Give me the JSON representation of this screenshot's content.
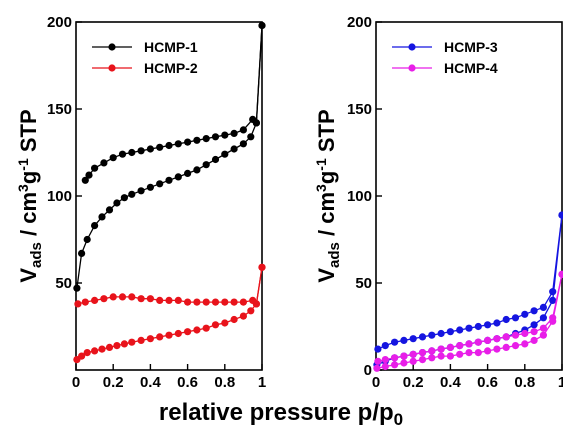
{
  "chart_data": [
    {
      "type": "line",
      "panel": "left",
      "ylabel": {
        "main": "V",
        "sub": "ads",
        "mid": " / cm",
        "sup1": "3",
        "mid2": "g",
        "sup2": "-1",
        "tail": " STP"
      },
      "xlim": [
        0,
        1
      ],
      "ylim": [
        0,
        200
      ],
      "xticks": [
        0,
        0.2,
        0.4,
        0.6,
        0.8,
        1
      ],
      "xtick_labels": [
        "0",
        "0.2",
        "0.4",
        "0.6",
        "0.8",
        "1"
      ],
      "yticks": [
        50,
        100,
        150,
        200
      ],
      "ytick_labels": [
        "50",
        "100",
        "150",
        "200"
      ],
      "legend_position": "top-left",
      "series": [
        {
          "name": "HCMP-1",
          "color": "#000000",
          "adsorption": [
            [
              0.005,
              47
            ],
            [
              0.03,
              67
            ],
            [
              0.06,
              75
            ],
            [
              0.1,
              83
            ],
            [
              0.14,
              88
            ],
            [
              0.18,
              92
            ],
            [
              0.22,
              96
            ],
            [
              0.26,
              99
            ],
            [
              0.3,
              101
            ],
            [
              0.35,
              103
            ],
            [
              0.4,
              105
            ],
            [
              0.45,
              107
            ],
            [
              0.5,
              109
            ],
            [
              0.55,
              111
            ],
            [
              0.6,
              113
            ],
            [
              0.65,
              115
            ],
            [
              0.7,
              118
            ],
            [
              0.75,
              121
            ],
            [
              0.8,
              124
            ],
            [
              0.85,
              127
            ],
            [
              0.9,
              130
            ],
            [
              0.94,
              134
            ],
            [
              0.97,
              142
            ],
            [
              1.0,
              198
            ]
          ],
          "desorption": [
            [
              1.0,
              198
            ],
            [
              0.97,
              142
            ],
            [
              0.95,
              144
            ],
            [
              0.9,
              138
            ],
            [
              0.85,
              136
            ],
            [
              0.8,
              135
            ],
            [
              0.75,
              134
            ],
            [
              0.7,
              133
            ],
            [
              0.65,
              132
            ],
            [
              0.6,
              131
            ],
            [
              0.55,
              130
            ],
            [
              0.5,
              129
            ],
            [
              0.45,
              128
            ],
            [
              0.4,
              127
            ],
            [
              0.35,
              126
            ],
            [
              0.3,
              125
            ],
            [
              0.25,
              124
            ],
            [
              0.2,
              122
            ],
            [
              0.15,
              119
            ],
            [
              0.1,
              116
            ],
            [
              0.07,
              112
            ],
            [
              0.05,
              109
            ]
          ]
        },
        {
          "name": "HCMP-2",
          "color": "#e8131b",
          "adsorption": [
            [
              0.005,
              6
            ],
            [
              0.03,
              8
            ],
            [
              0.06,
              10
            ],
            [
              0.1,
              11
            ],
            [
              0.14,
              12
            ],
            [
              0.18,
              13
            ],
            [
              0.22,
              14
            ],
            [
              0.26,
              15
            ],
            [
              0.3,
              16
            ],
            [
              0.35,
              17
            ],
            [
              0.4,
              18
            ],
            [
              0.45,
              19
            ],
            [
              0.5,
              20
            ],
            [
              0.55,
              21
            ],
            [
              0.6,
              22
            ],
            [
              0.65,
              23
            ],
            [
              0.7,
              24
            ],
            [
              0.75,
              26
            ],
            [
              0.8,
              27
            ],
            [
              0.85,
              29
            ],
            [
              0.9,
              31
            ],
            [
              0.94,
              34
            ],
            [
              0.97,
              38
            ],
            [
              1.0,
              59
            ]
          ],
          "desorption": [
            [
              1.0,
              59
            ],
            [
              0.97,
              38
            ],
            [
              0.95,
              40
            ],
            [
              0.9,
              39
            ],
            [
              0.85,
              39
            ],
            [
              0.8,
              39
            ],
            [
              0.75,
              39
            ],
            [
              0.7,
              39
            ],
            [
              0.65,
              39
            ],
            [
              0.6,
              39
            ],
            [
              0.55,
              40
            ],
            [
              0.5,
              40
            ],
            [
              0.45,
              40
            ],
            [
              0.4,
              41
            ],
            [
              0.35,
              41
            ],
            [
              0.3,
              42
            ],
            [
              0.25,
              42
            ],
            [
              0.2,
              42
            ],
            [
              0.15,
              41
            ],
            [
              0.1,
              40
            ],
            [
              0.05,
              39
            ],
            [
              0.01,
              38
            ]
          ]
        }
      ]
    },
    {
      "type": "line",
      "panel": "right",
      "ylabel": {
        "main": "V",
        "sub": "ads",
        "mid": " / cm",
        "sup1": "3",
        "mid2": "g",
        "sup2": "-1",
        "tail": " STP"
      },
      "xlim": [
        0,
        1
      ],
      "ylim": [
        0,
        200
      ],
      "xticks": [
        0,
        0.2,
        0.4,
        0.6,
        0.8,
        1
      ],
      "xtick_labels": [
        "0",
        "0.2",
        "0.4",
        "0.6",
        "0.8",
        "1"
      ],
      "yticks": [
        0,
        50,
        100,
        150,
        200
      ],
      "ytick_labels": [
        "0",
        "50",
        "100",
        "150",
        "200"
      ],
      "legend_position": "top-left",
      "series": [
        {
          "name": "HCMP-3",
          "color": "#1515e0",
          "adsorption": [
            [
              0.005,
              3
            ],
            [
              0.05,
              5
            ],
            [
              0.1,
              7
            ],
            [
              0.15,
              8
            ],
            [
              0.2,
              9
            ],
            [
              0.25,
              10
            ],
            [
              0.3,
              11
            ],
            [
              0.35,
              12
            ],
            [
              0.4,
              13
            ],
            [
              0.45,
              14
            ],
            [
              0.5,
              15
            ],
            [
              0.55,
              16
            ],
            [
              0.6,
              17
            ],
            [
              0.65,
              18
            ],
            [
              0.7,
              19
            ],
            [
              0.75,
              21
            ],
            [
              0.8,
              23
            ],
            [
              0.85,
              26
            ],
            [
              0.9,
              30
            ],
            [
              0.95,
              40
            ],
            [
              1.0,
              89
            ]
          ],
          "desorption": [
            [
              1.0,
              89
            ],
            [
              0.95,
              45
            ],
            [
              0.9,
              36
            ],
            [
              0.85,
              34
            ],
            [
              0.8,
              32
            ],
            [
              0.75,
              30
            ],
            [
              0.7,
              29
            ],
            [
              0.65,
              27
            ],
            [
              0.6,
              26
            ],
            [
              0.55,
              25
            ],
            [
              0.5,
              24
            ],
            [
              0.45,
              23
            ],
            [
              0.4,
              22
            ],
            [
              0.35,
              21
            ],
            [
              0.3,
              20
            ],
            [
              0.25,
              19
            ],
            [
              0.2,
              18
            ],
            [
              0.15,
              17
            ],
            [
              0.1,
              16
            ],
            [
              0.05,
              14
            ],
            [
              0.01,
              12
            ]
          ]
        },
        {
          "name": "HCMP-4",
          "color": "#e81ee8",
          "adsorption": [
            [
              0.005,
              1
            ],
            [
              0.05,
              2
            ],
            [
              0.1,
              3
            ],
            [
              0.15,
              4
            ],
            [
              0.2,
              5
            ],
            [
              0.25,
              6
            ],
            [
              0.3,
              7
            ],
            [
              0.35,
              8
            ],
            [
              0.4,
              8
            ],
            [
              0.45,
              9
            ],
            [
              0.5,
              10
            ],
            [
              0.55,
              10
            ],
            [
              0.6,
              11
            ],
            [
              0.65,
              12
            ],
            [
              0.7,
              13
            ],
            [
              0.75,
              14
            ],
            [
              0.8,
              15
            ],
            [
              0.85,
              17
            ],
            [
              0.9,
              20
            ],
            [
              0.95,
              28
            ],
            [
              1.0,
              55
            ]
          ],
          "desorption": [
            [
              1.0,
              55
            ],
            [
              0.95,
              30
            ],
            [
              0.9,
              24
            ],
            [
              0.85,
              22
            ],
            [
              0.8,
              21
            ],
            [
              0.75,
              20
            ],
            [
              0.7,
              19
            ],
            [
              0.65,
              18
            ],
            [
              0.6,
              17
            ],
            [
              0.55,
              16
            ],
            [
              0.5,
              15
            ],
            [
              0.45,
              14
            ],
            [
              0.4,
              13
            ],
            [
              0.35,
              12
            ],
            [
              0.3,
              11
            ],
            [
              0.25,
              10
            ],
            [
              0.2,
              9
            ],
            [
              0.15,
              8
            ],
            [
              0.1,
              7
            ],
            [
              0.05,
              6
            ],
            [
              0.01,
              5
            ]
          ]
        }
      ]
    }
  ],
  "shared_xlabel": {
    "main": "relative pressure p/p",
    "sub": "0"
  }
}
